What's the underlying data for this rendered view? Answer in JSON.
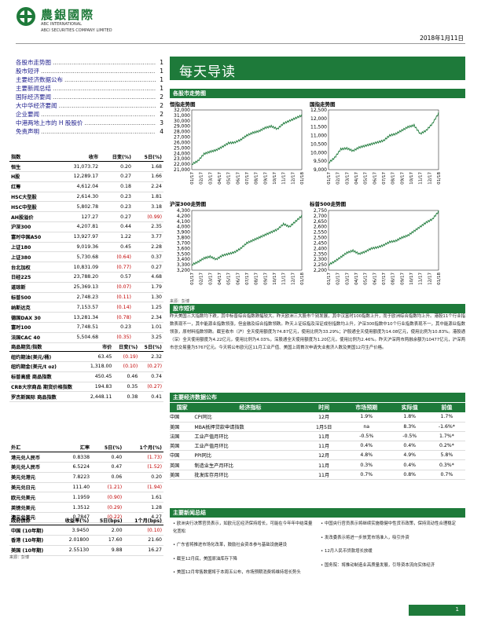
{
  "header": {
    "logo_text": "農銀國際",
    "logo_sub1": "ABC INTERNATIONAL",
    "logo_sub2": "ABCI SECURITIES COMPANY LIMITED",
    "date": "2018年1月11日"
  },
  "toc": [
    {
      "t": "各股市走势图",
      "p": "1"
    },
    {
      "t": "股市短评",
      "p": "1"
    },
    {
      "t": "主要经济数据公布",
      "p": "1"
    },
    {
      "t": "主要新闻总结",
      "p": "1"
    },
    {
      "t": "国际经济要闻",
      "p": "2"
    },
    {
      "t": "大中华经济要闻",
      "p": "2"
    },
    {
      "t": "企业要闻",
      "p": "2"
    },
    {
      "t": "中港两地上市的 H 股股价",
      "p": "3"
    },
    {
      "t": "免责声明",
      "p": "4"
    }
  ],
  "banner": "每天导读",
  "indices": {
    "head": [
      "指数",
      "收市",
      "日变(%)",
      "5日(%)"
    ],
    "rows": [
      [
        "恒生",
        "31,073.72",
        "0.20",
        "1.68"
      ],
      [
        "H股",
        "12,289.17",
        "0.27",
        "1.66"
      ],
      [
        "红筹",
        "4,612.04",
        "0.18",
        "2.24"
      ],
      [
        "HSC大型股",
        "2,614.30",
        "0.23",
        "1.81"
      ],
      [
        "HSC中型股",
        "5,802.78",
        "0.23",
        "3.18"
      ],
      [
        "AH股溢价",
        "127.27",
        "0.27",
        "(0.99)"
      ],
      [
        "沪深300",
        "4,207.81",
        "0.44",
        "2.35"
      ],
      [
        "富时中国A50",
        "13,927.97",
        "1.22",
        "3.77"
      ],
      [
        "上证180",
        "9,019.36",
        "0.45",
        "2.28"
      ],
      [
        "上证380",
        "5,730.68",
        "(0.64)",
        "0.37"
      ],
      [
        "台北加权",
        "10,831.09",
        "(0.77)",
        "0.27"
      ],
      [
        "日经225",
        "23,788.20",
        "0.57",
        "4.68"
      ],
      [
        "道琼斯",
        "25,369.13",
        "(0.07)",
        "1.79"
      ],
      [
        "标普500",
        "2,748.23",
        "(0.11)",
        "1.30"
      ],
      [
        "纳斯达克",
        "7,153.57",
        "(0.14)",
        "1.25"
      ],
      [
        "德国DAX 30",
        "13,281.34",
        "(0.78)",
        "2.34"
      ],
      [
        "富时100",
        "7,748.51",
        "0.23",
        "1.01"
      ],
      [
        "法国CAC 40",
        "5,504.68",
        "(0.35)",
        "3.25"
      ]
    ]
  },
  "commod": {
    "head": [
      "商品期货/指数",
      "市价",
      "日变(%)",
      "5日(%)"
    ],
    "rows": [
      [
        "纽约期油(美元/桶)",
        "63.45",
        "(0.19)",
        "2.32"
      ],
      [
        "纽约期金(美元/t oz)",
        "1,318.00",
        "(0.10)",
        "(0.27)"
      ],
      [
        "标普高盛 商品指数",
        "450.45",
        "0.46",
        "0.74"
      ],
      [
        "CRB大宗商品 期货价格指数",
        "194.83",
        "0.35",
        "(0.27)"
      ],
      [
        "罗杰斯国际 商品指数",
        "2,448.11",
        "0.38",
        "0.41"
      ]
    ]
  },
  "fx": {
    "head": [
      "外汇",
      "汇率",
      "5日(%)",
      "1个月(%)"
    ],
    "rows": [
      [
        "港元兑人民币",
        "0.8338",
        "0.40",
        "(1.73)"
      ],
      [
        "美元兑人民币",
        "6.5224",
        "0.47",
        "(1.52)"
      ],
      [
        "美元兑港元",
        "7.8223",
        "0.06",
        "0.20"
      ],
      [
        "美元兑日元",
        "111.40",
        "(1.21)",
        "(1.94)"
      ],
      [
        "欧元兑美元",
        "1.1959",
        "(0.90)",
        "1.61"
      ],
      [
        "英镑兑美元",
        "1.3512",
        "(0.29)",
        "1.28"
      ],
      [
        "澳元兑美元",
        "0.7847",
        "(0.22)",
        "4.27"
      ]
    ]
  },
  "bonds": {
    "head": [
      "政府债券",
      "收益率(%)",
      "5日(bps)",
      "1个月(bps)"
    ],
    "rows": [
      [
        "中国 (10年期)",
        "3.9450",
        "2.00",
        "(0.10)"
      ],
      [
        "香港 (10年期)",
        "2.01800",
        "17.60",
        "21.60"
      ],
      [
        "美国 (10年期)",
        "2.55130",
        "9.88",
        "16.27"
      ]
    ],
    "src": "来源：彭博"
  },
  "sec_charts": "各股市走势图",
  "charts": [
    {
      "title": "恒指走势图",
      "ylim": [
        21000,
        32000
      ],
      "ticks": [
        "32,000",
        "31,000",
        "30,000",
        "29,000",
        "28,000",
        "27,000",
        "26,000",
        "25,000",
        "24,000",
        "23,000",
        "22,000",
        "21,000"
      ],
      "values": [
        22000,
        22600,
        23900,
        24300,
        24600,
        25200,
        25900,
        26000,
        26500,
        27300,
        27800,
        28100,
        28700,
        29000,
        28500,
        29500,
        30000,
        30500,
        31000
      ]
    },
    {
      "title": "国指走势图",
      "ylim": [
        9000,
        12500
      ],
      "ticks": [
        "12,500",
        "12,000",
        "11,500",
        "11,000",
        "10,500",
        "10,000",
        "9,500",
        "9,000"
      ],
      "values": [
        9400,
        9700,
        10200,
        10250,
        10100,
        10300,
        10400,
        10500,
        10600,
        10700,
        11000,
        11100,
        11300,
        11500,
        11600,
        11100,
        11300,
        11700,
        12300
      ]
    },
    {
      "title": "沪深300走势图",
      "ylim": [
        3200,
        4300
      ],
      "ticks": [
        "4,300",
        "4,200",
        "4,100",
        "4,000",
        "3,900",
        "3,800",
        "3,700",
        "3,600",
        "3,500",
        "3,400",
        "3,300",
        "3,200"
      ],
      "values": [
        3300,
        3350,
        3420,
        3450,
        3400,
        3470,
        3500,
        3530,
        3600,
        3700,
        3750,
        3800,
        3850,
        3900,
        3950,
        4050,
        4000,
        4100,
        4200
      ]
    },
    {
      "title": "标普500走势图",
      "ylim": [
        2200,
        2750
      ],
      "ticks": [
        "2,750",
        "2,700",
        "2,650",
        "2,600",
        "2,550",
        "2,500",
        "2,450",
        "2,400",
        "2,350",
        "2,300",
        "2,250",
        "2,200"
      ],
      "values": [
        2250,
        2280,
        2320,
        2360,
        2380,
        2350,
        2370,
        2400,
        2410,
        2430,
        2460,
        2470,
        2500,
        2520,
        2560,
        2600,
        2640,
        2670,
        2740
      ]
    }
  ],
  "xlabels": [
    "01/17",
    "02/17",
    "03/17",
    "04/17",
    "05/17",
    "06/17",
    "07/17",
    "08/17",
    "09/17",
    "10/17",
    "11/17",
    "12/17",
    "01/18"
  ],
  "src_charts": "来源：彭博",
  "sec_brief": "股市短评",
  "brief": "昨天美国三大指数均下跌，其中标普综合指数跌幅较大。昨天欧洲三大股市个别发展，其中汉富时100指数上升，而于欧洲综合指数均上升。港股11个行业指数表现不一，其中能源业指数领涨，但金融及综合指数领跌。昨天上证综指及深证成份指数均上升，沪深300指数中10个行业指数表现不一，其中能源业指数领涨，原材料指数领跌。截至收市（沪）全天使用额度为74.87亿元，使用比例为33.29%；沪股通全天使用额度为14.08亿元，使用比例为10.83%。港股通（深）全天使用额度为4.22亿元，使用比例为4.03%，深股通全天使用额度为1.20亿元，使用比例为2.46%。昨天沪深两市两融余额为10477亿元，沪深两市总交易量为5767亿元。今天将公布欧元区11月工业产值、美国上周首次申请失业救济人数及美国12月生产价格。",
  "sec_eco": "主要经济数据公布",
  "eco": {
    "head": [
      "国家",
      "经济指标",
      "时间",
      "市场预期",
      "实际值",
      "前值"
    ],
    "rows": [
      [
        "中国",
        "CPI同比",
        "12月",
        "1.9%",
        "1.8%",
        "1.7%"
      ],
      [
        "美国",
        "MBA抵押贷款申请指数",
        "1月5日",
        "na",
        "8.3%",
        "-1.6%*"
      ],
      [
        "法国",
        "工业产值月环比",
        "11月",
        "-0.5%",
        "-0.5%",
        "1.7%*"
      ],
      [
        "英国",
        "工业产值月环比",
        "11月",
        "0.4%",
        "0.4%",
        "0.2%*"
      ],
      [
        "中国",
        "PPI同比",
        "12月",
        "4.8%",
        "4.9%",
        "5.8%"
      ],
      [
        "英国",
        "制造业生产月环比",
        "11月",
        "0.3%",
        "0.4%",
        "0.3%*"
      ],
      [
        "美国",
        "批发库存月环比",
        "11月",
        "0.7%",
        "0.8%",
        "0.7%"
      ]
    ],
    "src": "来源：彭博，农银国际证券"
  },
  "sec_news": "主要新闻总结",
  "news_left": [
    "欧洲央行决策官员表示，如欧元区经济保持增长，可能在今年年中结束量化宽松",
    "广东省将推进市场化改革，鼓励社会资本参与基础设施建设",
    "截至12月底，美国原油库存下降",
    "美国12月零售数据将于本周五公布，市场预期消费将维持增长势头"
  ],
  "news_right": [
    "中国央行官员表示将继续实施稳健中性货币政策，保持流动性合理稳定",
    "发改委表示将进一步放宽市场准入，吸引外资",
    "12月人民币贷款增长放缓",
    "国务院：将推动制造业高质量发展，引导资本流向实体经济"
  ],
  "page": "1"
}
